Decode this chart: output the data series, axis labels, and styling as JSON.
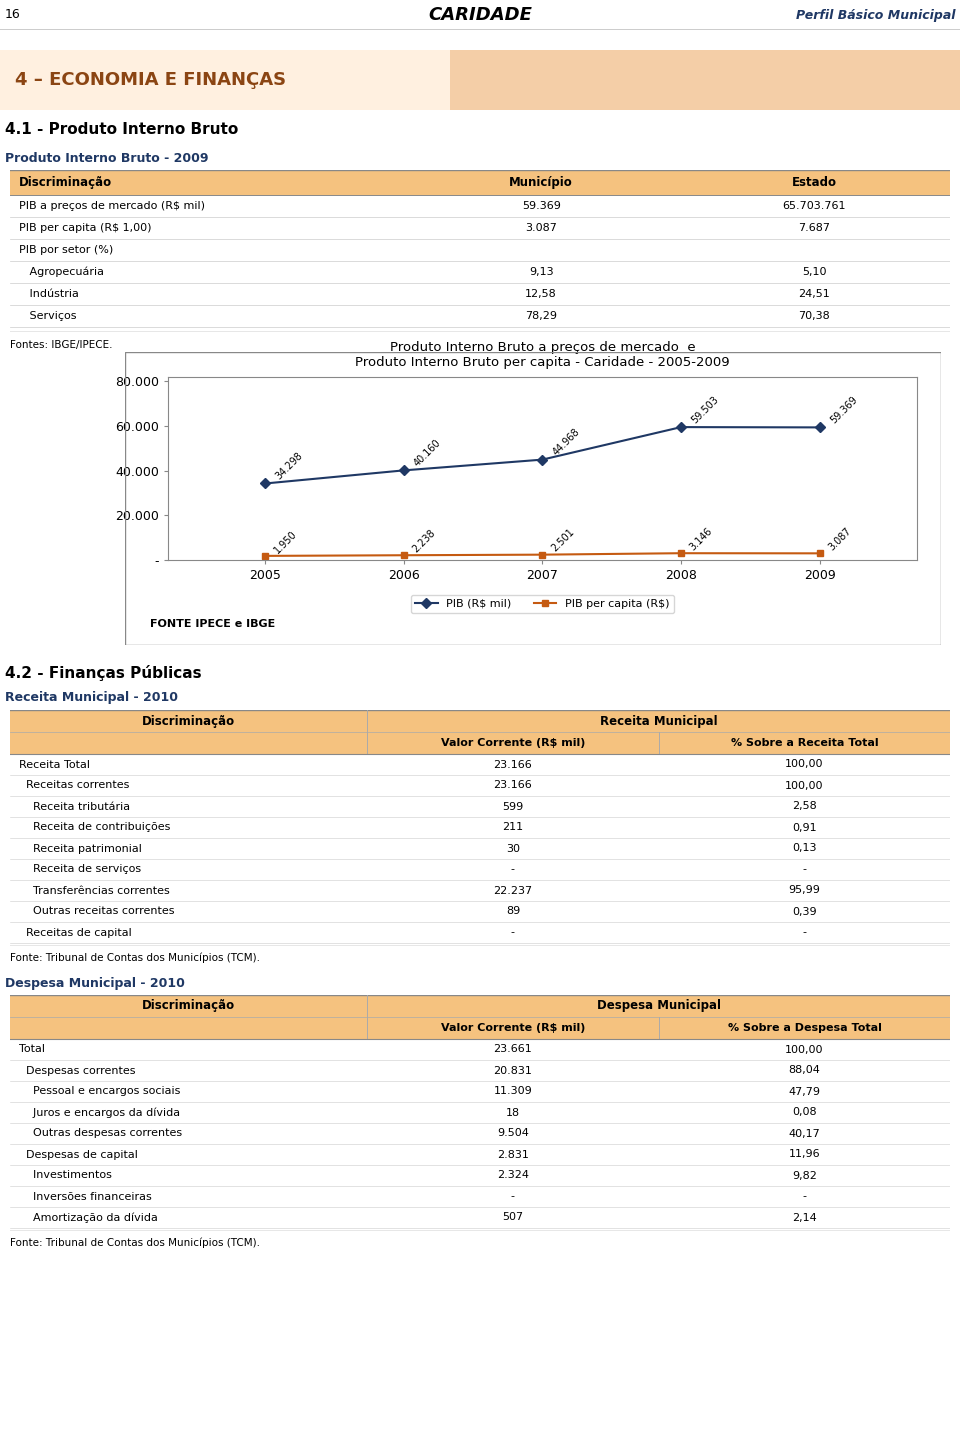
{
  "page_num": "16",
  "header_title": "CARIDADE",
  "header_right": "Perfil Básico Municipal",
  "section_title": "4 – ECONOMIA E FINANÇAS",
  "section_41_title": "4.1 - Produto Interno Bruto",
  "table1_title": "Produto Interno Bruto - 2009",
  "table1_header": [
    "Discriminação",
    "Município",
    "Estado"
  ],
  "table1_rows": [
    [
      "PIB a preços de mercado (R$ mil)",
      "59.369",
      "65.703.761"
    ],
    [
      "PIB per capita (R$ 1,00)",
      "3.087",
      "7.687"
    ],
    [
      "PIB por setor (%)",
      "",
      ""
    ],
    [
      "   Agropecuária",
      "9,13",
      "5,10"
    ],
    [
      "   Indústria",
      "12,58",
      "24,51"
    ],
    [
      "   Serviços",
      "78,29",
      "70,38"
    ]
  ],
  "table1_source": "Fontes: IBGE/IPECE.",
  "chart_title1": "Produto Interno Bruto a preços de mercado  e",
  "chart_title2": "Produto Interno Bruto per capita - Caridade - 2005-2009",
  "chart_years": [
    2005,
    2006,
    2007,
    2008,
    2009
  ],
  "chart_pib": [
    34298,
    40160,
    44968,
    59503,
    59369
  ],
  "chart_percapita": [
    1950,
    2238,
    2501,
    3146,
    3087
  ],
  "chart_pib_labels": [
    "34.298",
    "40.160",
    "44.968",
    "59.503",
    "59.369"
  ],
  "chart_percapita_labels": [
    "1.950",
    "2.238",
    "2.501",
    "3.146",
    "3.087"
  ],
  "chart_pib_color": "#1F3864",
  "chart_percapita_color": "#C55A11",
  "chart_source": "FONTE IPECE e IBGE",
  "chart_legend_pib": "PIB (R$ mil)",
  "chart_legend_percapita": "PIB per capita (R$)",
  "section_42_title": "4.2 - Finanças Públicas",
  "table2_title": "Receita Municipal - 2010",
  "table2_header1": "Discriminação",
  "table2_header2": "Receita Municipal",
  "table2_subheader2a": "Valor Corrente (R$ mil)",
  "table2_subheader2b": "% Sobre a Receita Total",
  "table2_rows": [
    [
      "Receita Total",
      "23.166",
      "100,00"
    ],
    [
      "  Receitas correntes",
      "23.166",
      "100,00"
    ],
    [
      "    Receita tributária",
      "599",
      "2,58"
    ],
    [
      "    Receita de contribuições",
      "211",
      "0,91"
    ],
    [
      "    Receita patrimonial",
      "30",
      "0,13"
    ],
    [
      "    Receita de serviços",
      "-",
      "-"
    ],
    [
      "    Transferências correntes",
      "22.237",
      "95,99"
    ],
    [
      "    Outras receitas correntes",
      "89",
      "0,39"
    ],
    [
      "  Receitas de capital",
      "-",
      "-"
    ]
  ],
  "table2_source": "Fonte: Tribunal de Contas dos Municípios (TCM).",
  "table3_title": "Despesa Municipal - 2010",
  "table3_header1": "Discriminação",
  "table3_header2": "Despesa Municipal",
  "table3_subheader2a": "Valor Corrente (R$ mil)",
  "table3_subheader2b": "% Sobre a Despesa Total",
  "table3_rows": [
    [
      "Total",
      "23.661",
      "100,00"
    ],
    [
      "  Despesas correntes",
      "20.831",
      "88,04"
    ],
    [
      "    Pessoal e encargos sociais",
      "11.309",
      "47,79"
    ],
    [
      "    Juros e encargos da dívida",
      "18",
      "0,08"
    ],
    [
      "    Outras despesas correntes",
      "9.504",
      "40,17"
    ],
    [
      "  Despesas de capital",
      "2.831",
      "11,96"
    ],
    [
      "    Investimentos",
      "2.324",
      "9,82"
    ],
    [
      "    Inversões financeiras",
      "-",
      "-"
    ],
    [
      "    Amortização da dívida",
      "507",
      "2,14"
    ]
  ],
  "table3_source": "Fonte: Tribunal de Contas dos Municípios (TCM).",
  "table_header_bg": "#F5C27F",
  "dark_blue": "#1F3864",
  "section_color": "#8B4513"
}
